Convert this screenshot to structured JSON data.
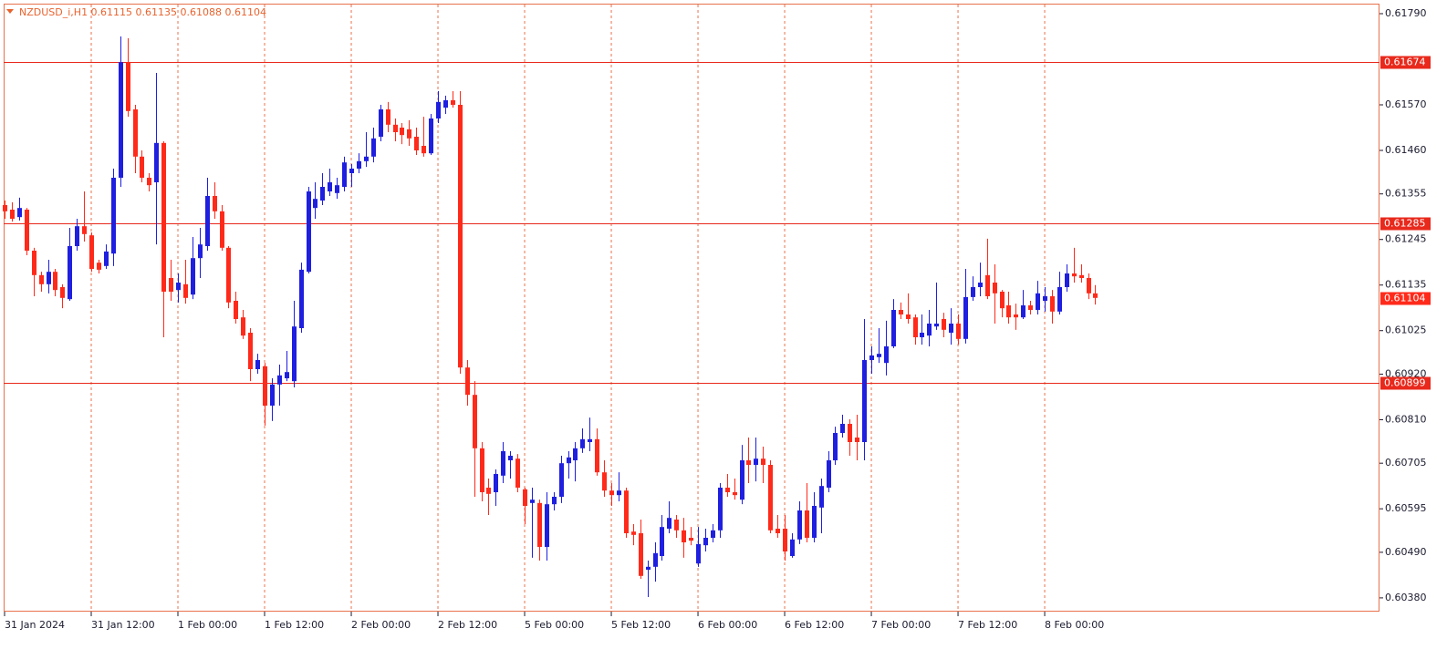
{
  "chart_data": {
    "type": "candlestick",
    "title": "NZDUSD_i,H1  0.61115 0.61135 0.61088 0.61104",
    "up_color": "#1f1fe0",
    "down_color": "#ff2a1a",
    "grid": "vertical",
    "x": [
      0,
      1,
      2,
      3,
      4,
      5,
      6,
      7,
      8,
      9,
      10,
      11,
      12,
      13,
      14,
      15,
      16,
      17,
      18,
      19,
      20,
      21,
      22,
      23,
      24,
      25,
      26,
      27,
      28,
      29,
      30,
      31,
      32,
      33,
      34,
      35,
      36,
      37,
      38,
      39,
      40,
      41,
      42,
      43,
      44,
      45,
      46,
      47,
      48,
      49,
      50,
      51,
      52,
      53,
      54,
      55,
      56,
      57,
      58,
      59,
      60,
      61,
      62,
      63,
      64,
      65,
      66,
      67,
      68,
      69,
      70,
      71,
      72,
      73,
      74,
      75,
      76,
      77,
      78,
      79,
      80,
      81,
      82,
      83,
      84,
      85,
      86,
      87,
      88,
      89,
      90,
      91,
      92,
      93,
      94,
      95,
      96,
      97,
      98,
      99,
      100,
      101,
      102,
      103,
      104,
      105,
      106,
      107,
      108,
      109,
      110,
      111,
      112,
      113,
      114,
      115,
      116,
      117,
      118,
      119,
      120,
      121,
      122,
      123,
      124,
      125,
      126,
      127,
      128,
      129,
      130,
      131,
      132,
      133,
      134,
      135,
      136,
      137,
      138,
      139,
      140,
      141,
      142,
      143,
      144,
      145,
      146,
      147,
      148,
      149,
      150,
      151
    ],
    "open": [
      0.61328,
      0.61317,
      0.61299,
      0.61317,
      0.61218,
      0.61159,
      0.61137,
      0.61167,
      0.6113,
      0.61101,
      0.61229,
      0.61277,
      0.61255,
      0.61189,
      0.61181,
      0.61211,
      0.61394,
      0.61673,
      0.61559,
      0.61445,
      0.61394,
      0.61383,
      0.61478,
      0.61152,
      0.61123,
      0.61137,
      0.61112,
      0.612,
      0.61229,
      0.6135,
      0.61313,
      0.61225,
      0.61097,
      0.61057,
      0.6102,
      0.60932,
      0.60939,
      0.60844,
      0.60895,
      0.6091,
      0.60903,
      0.61031,
      0.61167,
      0.61321,
      0.61339,
      0.61361,
      0.61357,
      0.61372,
      0.61405,
      0.61416,
      0.61434,
      0.61445,
      0.61493,
      0.61559,
      0.61522,
      0.61515,
      0.61511,
      0.61493,
      0.61471,
      0.61453,
      0.61537,
      0.61563,
      0.61581,
      0.6157,
      0.60936,
      0.6087,
      0.60741,
      0.60646,
      0.60635,
      0.60675,
      0.60712,
      0.60716,
      0.60642,
      0.60609,
      0.60609,
      0.60503,
      0.60606,
      0.60624,
      0.60705,
      0.60712,
      0.60741,
      0.60756,
      0.60763,
      0.60683,
      0.60639,
      0.60628,
      0.60639,
      0.6054,
      0.60536,
      0.60448,
      0.60455,
      0.60481,
      0.60547,
      0.60569,
      0.60543,
      0.60525,
      0.60463,
      0.60507,
      0.60525,
      0.60543,
      0.60646,
      0.60635,
      0.60617,
      0.60712,
      0.60701,
      0.60716,
      0.60701,
      0.60547,
      0.60547,
      0.60481,
      0.60521,
      0.60591,
      0.60525,
      0.60598,
      0.60646,
      0.60712,
      0.60778,
      0.608,
      0.60767,
      0.60756,
      0.60954,
      0.60961,
      0.60947,
      0.60987,
      0.61075,
      0.61064,
      0.61057,
      0.61009,
      0.61013,
      0.61035,
      0.61053,
      0.6102,
      0.61042,
      0.61005,
      0.61106,
      0.6113,
      0.61159,
      0.61141,
      0.61119,
      0.61086,
      0.61064,
      0.61057,
      0.61086,
      0.61075,
      0.61097,
      0.61108,
      0.61071,
      0.6113,
      0.61163,
      0.61159,
      0.61152,
      0.61115
    ],
    "high": [
      0.61339,
      0.61335,
      0.61346,
      0.61321,
      0.61225,
      0.61167,
      0.61196,
      0.61174,
      0.61137,
      0.61273,
      0.61295,
      0.61361,
      0.61262,
      0.61196,
      0.61233,
      0.61416,
      0.61735,
      0.61731,
      0.6157,
      0.6146,
      0.61405,
      0.61647,
      0.61482,
      0.61196,
      0.61163,
      0.61196,
      0.61251,
      0.61273,
      0.61394,
      0.61383,
      0.61328,
      0.61229,
      0.61119,
      0.61075,
      0.61031,
      0.60969,
      0.60947,
      0.6091,
      0.60943,
      0.60976,
      0.61097,
      0.61189,
      0.61372,
      0.61383,
      0.61405,
      0.61416,
      0.61394,
      0.61445,
      0.61427,
      0.61453,
      0.61504,
      0.61515,
      0.6157,
      0.61577,
      0.61537,
      0.61526,
      0.61533,
      0.61515,
      0.61541,
      0.61548,
      0.61603,
      0.61592,
      0.61603,
      0.61603,
      0.60954,
      0.60903,
      0.60756,
      0.60668,
      0.6069,
      0.60756,
      0.60734,
      0.60727,
      0.60646,
      0.60646,
      0.60617,
      0.60635,
      0.60635,
      0.60723,
      0.60734,
      0.60756,
      0.60789,
      0.60815,
      0.60789,
      0.60712,
      0.60657,
      0.60683,
      0.60646,
      0.60558,
      0.60569,
      0.6047,
      0.60514,
      0.6058,
      0.60613,
      0.6058,
      0.60573,
      0.60551,
      0.60551,
      0.60547,
      0.60558,
      0.60657,
      0.60679,
      0.60668,
      0.60749,
      0.60767,
      0.60767,
      0.60745,
      0.60712,
      0.6058,
      0.6058,
      0.60536,
      0.60613,
      0.60657,
      0.60635,
      0.60668,
      0.60734,
      0.60793,
      0.60822,
      0.60811,
      0.60822,
      0.61053,
      0.60987,
      0.61031,
      0.61049,
      0.61101,
      0.61093,
      0.61115,
      0.61064,
      0.61064,
      0.61075,
      0.61141,
      0.61068,
      0.61079,
      0.61064,
      0.61174,
      0.61156,
      0.61189,
      0.61247,
      0.61185,
      0.61123,
      0.61119,
      0.6109,
      0.61123,
      0.61097,
      0.61145,
      0.6113,
      0.61123,
      0.61167,
      0.61185,
      0.61225,
      0.61185,
      0.61163,
      0.61135
    ],
    "low": [
      0.61295,
      0.61288,
      0.61291,
      0.61207,
      0.61108,
      0.61119,
      0.61115,
      0.61108,
      0.61079,
      0.61097,
      0.61218,
      0.6124,
      0.61167,
      0.61163,
      0.61174,
      0.61181,
      0.61372,
      0.61541,
      0.61405,
      0.61383,
      0.61361,
      0.61233,
      0.61009,
      0.61097,
      0.61093,
      0.6109,
      0.61101,
      0.61152,
      0.61218,
      0.61295,
      0.61218,
      0.61079,
      0.61042,
      0.61005,
      0.60903,
      0.60921,
      0.60796,
      0.60807,
      0.60844,
      0.60903,
      0.60888,
      0.6102,
      0.61163,
      0.61295,
      0.61328,
      0.6135,
      0.61343,
      0.61361,
      0.61372,
      0.61405,
      0.6142,
      0.61431,
      0.61482,
      0.61504,
      0.61482,
      0.61475,
      0.61471,
      0.61449,
      0.61445,
      0.61449,
      0.61526,
      0.61548,
      0.61563,
      0.60921,
      0.60844,
      0.60624,
      0.60613,
      0.6058,
      0.60602,
      0.60657,
      0.60668,
      0.60635,
      0.60558,
      0.60477,
      0.6047,
      0.6047,
      0.60591,
      0.60609,
      0.60668,
      0.60661,
      0.6073,
      0.60734,
      0.60675,
      0.60624,
      0.60602,
      0.60613,
      0.60525,
      0.60507,
      0.60426,
      0.60382,
      0.60419,
      0.6047,
      0.60536,
      0.60525,
      0.60477,
      0.60507,
      0.60455,
      0.60492,
      0.60514,
      0.60525,
      0.60624,
      0.60617,
      0.60606,
      0.60657,
      0.60661,
      0.60657,
      0.60536,
      0.60525,
      0.6047,
      0.60477,
      0.6051,
      0.60514,
      0.60514,
      0.60536,
      0.60635,
      0.60701,
      0.60767,
      0.60723,
      0.60712,
      0.60712,
      0.60921,
      0.60947,
      0.60917,
      0.60983,
      0.61053,
      0.61042,
      0.60991,
      0.60991,
      0.60987,
      0.61027,
      0.61009,
      0.60991,
      0.60991,
      0.60994,
      0.61097,
      0.61108,
      0.61101,
      0.61042,
      0.61057,
      0.61042,
      0.61027,
      0.61053,
      0.61064,
      0.61064,
      0.61071,
      0.61042,
      0.61064,
      0.61119,
      0.61141,
      0.61141,
      0.61101,
      0.61088
    ],
    "close": [
      0.61313,
      0.61295,
      0.61321,
      0.61218,
      0.61159,
      0.61137,
      0.61167,
      0.61123,
      0.61104,
      0.61229,
      0.61277,
      0.61258,
      0.61174,
      0.61172,
      0.61216,
      0.61394,
      0.61673,
      0.61555,
      0.61445,
      0.61394,
      0.61376,
      0.61478,
      0.61119,
      0.61119,
      0.61141,
      0.61104,
      0.612,
      0.61233,
      0.6135,
      0.61313,
      0.61225,
      0.61093,
      0.61053,
      0.61013,
      0.60932,
      0.60954,
      0.60844,
      0.60895,
      0.60917,
      0.60925,
      0.61035,
      0.61172,
      0.61361,
      0.61343,
      0.61372,
      0.61383,
      0.61376,
      0.61431,
      0.61416,
      0.61434,
      0.61445,
      0.61489,
      0.61559,
      0.61522,
      0.61504,
      0.61497,
      0.61489,
      0.6146,
      0.61453,
      0.61537,
      0.61577,
      0.61581,
      0.6157,
      0.60936,
      0.6087,
      0.60741,
      0.60635,
      0.60631,
      0.60679,
      0.60734,
      0.60723,
      0.60646,
      0.60602,
      0.60617,
      0.60503,
      0.60606,
      0.60624,
      0.60705,
      0.60719,
      0.60741,
      0.60763,
      0.60763,
      0.60683,
      0.60639,
      0.60628,
      0.60639,
      0.60536,
      0.60532,
      0.60433,
      0.60455,
      0.60488,
      0.60551,
      0.60573,
      0.60543,
      0.60514,
      0.60518,
      0.6051,
      0.60525,
      0.60543,
      0.60646,
      0.60635,
      0.60628,
      0.60712,
      0.60701,
      0.60716,
      0.60701,
      0.60543,
      0.60536,
      0.60492,
      0.60521,
      0.60591,
      0.60525,
      0.60602,
      0.6065,
      0.60712,
      0.60778,
      0.608,
      0.60756,
      0.60756,
      0.60954,
      0.60965,
      0.60969,
      0.60987,
      0.61075,
      0.61064,
      0.61053,
      0.61009,
      0.6102,
      0.61042,
      0.61042,
      0.61027,
      0.61042,
      0.61005,
      0.61106,
      0.6113,
      0.61141,
      0.61108,
      0.61115,
      0.61079,
      0.61057,
      0.61057,
      0.61086,
      0.61075,
      0.61115,
      0.61108,
      0.61071,
      0.6113,
      0.61163,
      0.61156,
      0.61152,
      0.61115,
      0.61104
    ],
    "xlim": [
      0,
      190.35
    ],
    "xticks": [
      {
        "value": 0,
        "label": "31 Jan 2024"
      },
      {
        "value": 12,
        "label": "31 Jan 12:00"
      },
      {
        "value": 24,
        "label": "1 Feb 00:00"
      },
      {
        "value": 36,
        "label": "1 Feb 12:00"
      },
      {
        "value": 48,
        "label": "2 Feb 00:00"
      },
      {
        "value": 60,
        "label": "2 Feb 12:00"
      },
      {
        "value": 72,
        "label": "5 Feb 00:00"
      },
      {
        "value": 84,
        "label": "5 Feb 12:00"
      },
      {
        "value": 96,
        "label": "6 Feb 00:00"
      },
      {
        "value": 108,
        "label": "6 Feb 12:00"
      },
      {
        "value": 120,
        "label": "7 Feb 00:00"
      },
      {
        "value": 132,
        "label": "7 Feb 12:00"
      },
      {
        "value": 144,
        "label": "8 Feb 00:00"
      }
    ],
    "ylim": [
      0.60349,
      0.61812
    ],
    "yticks": [
      {
        "value": 0.6179,
        "label": "0.61790"
      },
      {
        "value": 0.6157,
        "label": "0.61570"
      },
      {
        "value": 0.6146,
        "label": "0.61460"
      },
      0.61355,
      0.61245,
      0.61135,
      0.61025,
      {
        "value": 0.6092,
        "label": "0.60920"
      },
      {
        "value": 0.6081,
        "label": "0.60810"
      },
      0.60705,
      0.60595,
      {
        "value": 0.6049,
        "label": "0.60490"
      },
      {
        "value": 0.6038,
        "label": "0.60380"
      }
    ],
    "hlines": [
      0.61674,
      0.61285,
      0.60899
    ],
    "hline_color": "#e8291c",
    "last_price": 0.61104
  }
}
